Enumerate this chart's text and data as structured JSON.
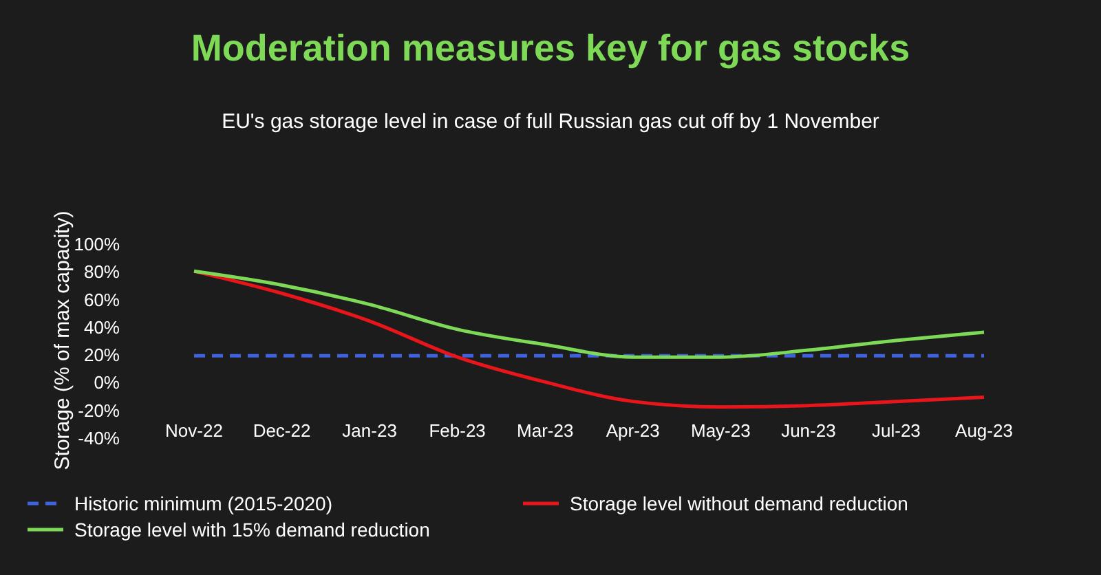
{
  "chart_data": {
    "type": "line",
    "title": "Moderation measures key for gas stocks",
    "subtitle": "EU's gas storage level in case of full Russian gas cut off by 1 November",
    "ylabel": "Storage (% of max capacity)",
    "categories": [
      "Nov-22",
      "Dec-22",
      "Jan-23",
      "Feb-23",
      "Mar-23",
      "Apr-23",
      "May-23",
      "Jun-23",
      "Jul-23",
      "Aug-23"
    ],
    "ylim": [
      -40,
      100
    ],
    "yticks": [
      {
        "value": -40,
        "label": "-40%"
      },
      {
        "value": -20,
        "label": "-20%"
      },
      {
        "value": 0,
        "label": "0%"
      },
      {
        "value": 20,
        "label": "20%"
      },
      {
        "value": 40,
        "label": "40%"
      },
      {
        "value": 60,
        "label": "60%"
      },
      {
        "value": 80,
        "label": "80%"
      },
      {
        "value": 100,
        "label": "100%"
      }
    ],
    "grid": false,
    "legend": "bottom",
    "marker": "none",
    "series": [
      {
        "name": "Historic minimum (2015-2020)",
        "color": "#3d63e0",
        "line_style": "dashed",
        "values": [
          19,
          19,
          19,
          19,
          19,
          19,
          19,
          19,
          19,
          19
        ]
      },
      {
        "name": "Storage level without demand reduction",
        "color": "#e8161b",
        "line_style": "solid",
        "values": [
          80,
          64,
          44,
          18,
          0,
          -14,
          -18,
          -17,
          -14,
          -11
        ]
      },
      {
        "name": "Storage level with 15% demand reduction",
        "color": "#7ed957",
        "line_style": "solid",
        "values": [
          80,
          70,
          56,
          38,
          27,
          18,
          18,
          23,
          30,
          36
        ]
      }
    ]
  }
}
